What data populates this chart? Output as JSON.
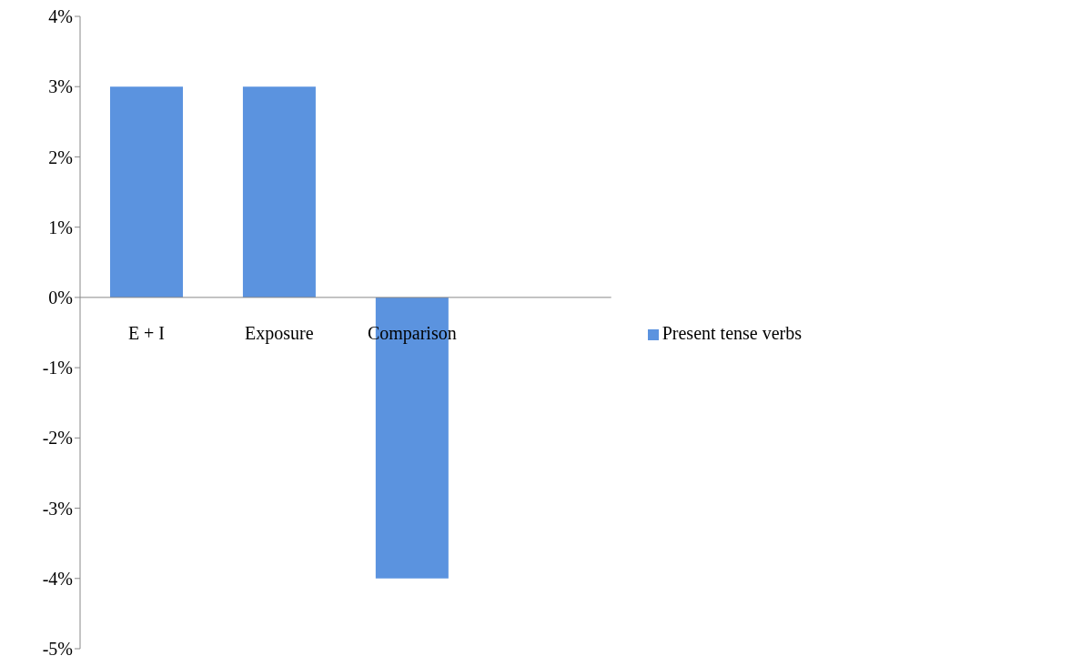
{
  "chart_data": {
    "type": "bar",
    "categories": [
      "E + I",
      "Exposure",
      "Comparison",
      null
    ],
    "series": [
      {
        "name": "Present tense verbs",
        "color": "#5b93df",
        "values": [
          3,
          3,
          -4,
          null
        ]
      }
    ],
    "ylim": [
      -5,
      4
    ],
    "yticks": [
      {
        "value": -5,
        "label": "-5%"
      },
      {
        "value": -4,
        "label": "-4%"
      },
      {
        "value": -3,
        "label": "-3%"
      },
      {
        "value": -2,
        "label": "-2%"
      },
      {
        "value": -1,
        "label": "-1%"
      },
      {
        "value": 0,
        "label": "0%"
      },
      {
        "value": 1,
        "label": "1%"
      },
      {
        "value": 2,
        "label": "2%"
      },
      {
        "value": 3,
        "label": "3%"
      },
      {
        "value": 4,
        "label": "4%"
      }
    ],
    "legend": "right"
  }
}
